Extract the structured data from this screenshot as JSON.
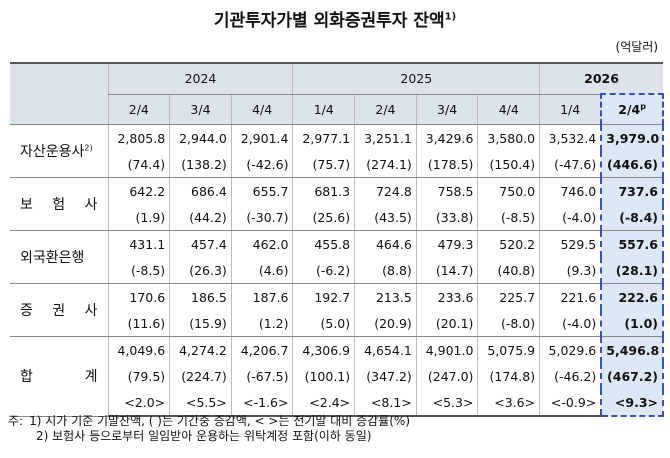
{
  "title": "기관투자가별 외화증권투자 잔액",
  "title_note": "1)",
  "unit": "(억달러)",
  "table": {
    "columns": [
      {
        "year": "2024",
        "quarters": [
          "2/4",
          "3/4",
          "4/4"
        ]
      },
      {
        "year": "2025",
        "quarters": [
          "1/4",
          "2/4",
          "3/4",
          "4/4"
        ]
      },
      {
        "year": "2026",
        "quarters": [
          "1/4",
          "2/4"
        ]
      }
    ],
    "latest_mark": "p",
    "rows": [
      {
        "label": "자산운용사",
        "note": "2)",
        "values": [
          "2,805.8",
          "2,944.0",
          "2,901.4",
          "2,977.1",
          "3,251.1",
          "3,429.6",
          "3,580.0",
          "3,532.4",
          "3,979.0"
        ],
        "changes": [
          "(74.4)",
          "(138.2)",
          "(-42.6)",
          "(75.7)",
          "(274.1)",
          "(178.5)",
          "(150.4)",
          "(-47.6)",
          "(446.6)"
        ]
      },
      {
        "label": "보 험 사",
        "values": [
          "642.2",
          "686.4",
          "655.7",
          "681.3",
          "724.8",
          "758.5",
          "750.0",
          "746.0",
          "737.6"
        ],
        "changes": [
          "(1.9)",
          "(44.2)",
          "(-30.7)",
          "(25.6)",
          "(43.5)",
          "(33.8)",
          "(-8.5)",
          "(-4.0)",
          "(-8.4)"
        ]
      },
      {
        "label": "외국환은행",
        "values": [
          "431.1",
          "457.4",
          "462.0",
          "455.8",
          "464.6",
          "479.3",
          "520.2",
          "529.5",
          "557.6"
        ],
        "changes": [
          "(-8.5)",
          "(26.3)",
          "(4.6)",
          "(-6.2)",
          "(8.8)",
          "(14.7)",
          "(40.8)",
          "(9.3)",
          "(28.1)"
        ]
      },
      {
        "label": "증 권 사",
        "values": [
          "170.6",
          "186.5",
          "187.6",
          "192.7",
          "213.5",
          "233.6",
          "225.7",
          "221.6",
          "222.6"
        ],
        "changes": [
          "(11.6)",
          "(15.9)",
          "(1.2)",
          "(5.0)",
          "(20.9)",
          "(20.1)",
          "(-8.0)",
          "(-4.0)",
          "(1.0)"
        ]
      },
      {
        "label": "합 계",
        "values": [
          "4,049.6",
          "4,274.2",
          "4,206.7",
          "4,306.9",
          "4,654.1",
          "4,901.0",
          "5,075.9",
          "5,029.6",
          "5,496.8"
        ],
        "changes": [
          "(79.5)",
          "(224.7)",
          "(-67.5)",
          "(100.1)",
          "(347.2)",
          "(247.0)",
          "(174.8)",
          "(-46.2)",
          "(467.2)"
        ],
        "rates": [
          "<2.0>",
          "<5.5>",
          "<-1.6>",
          "<2.4>",
          "<8.1>",
          "<5.3>",
          "<3.6>",
          "<-0.9>",
          "<9.3>"
        ]
      }
    ]
  },
  "notes": {
    "prefix": "주:",
    "items": [
      "1) 시가 기준 기말잔액, ( )는 기간중 증감액, < >는 전기말 대비 증감률(%)",
      "2) 보험사 등으로부터 일임받아 운용하는 위탁계정 포함(이하 동일)"
    ]
  }
}
